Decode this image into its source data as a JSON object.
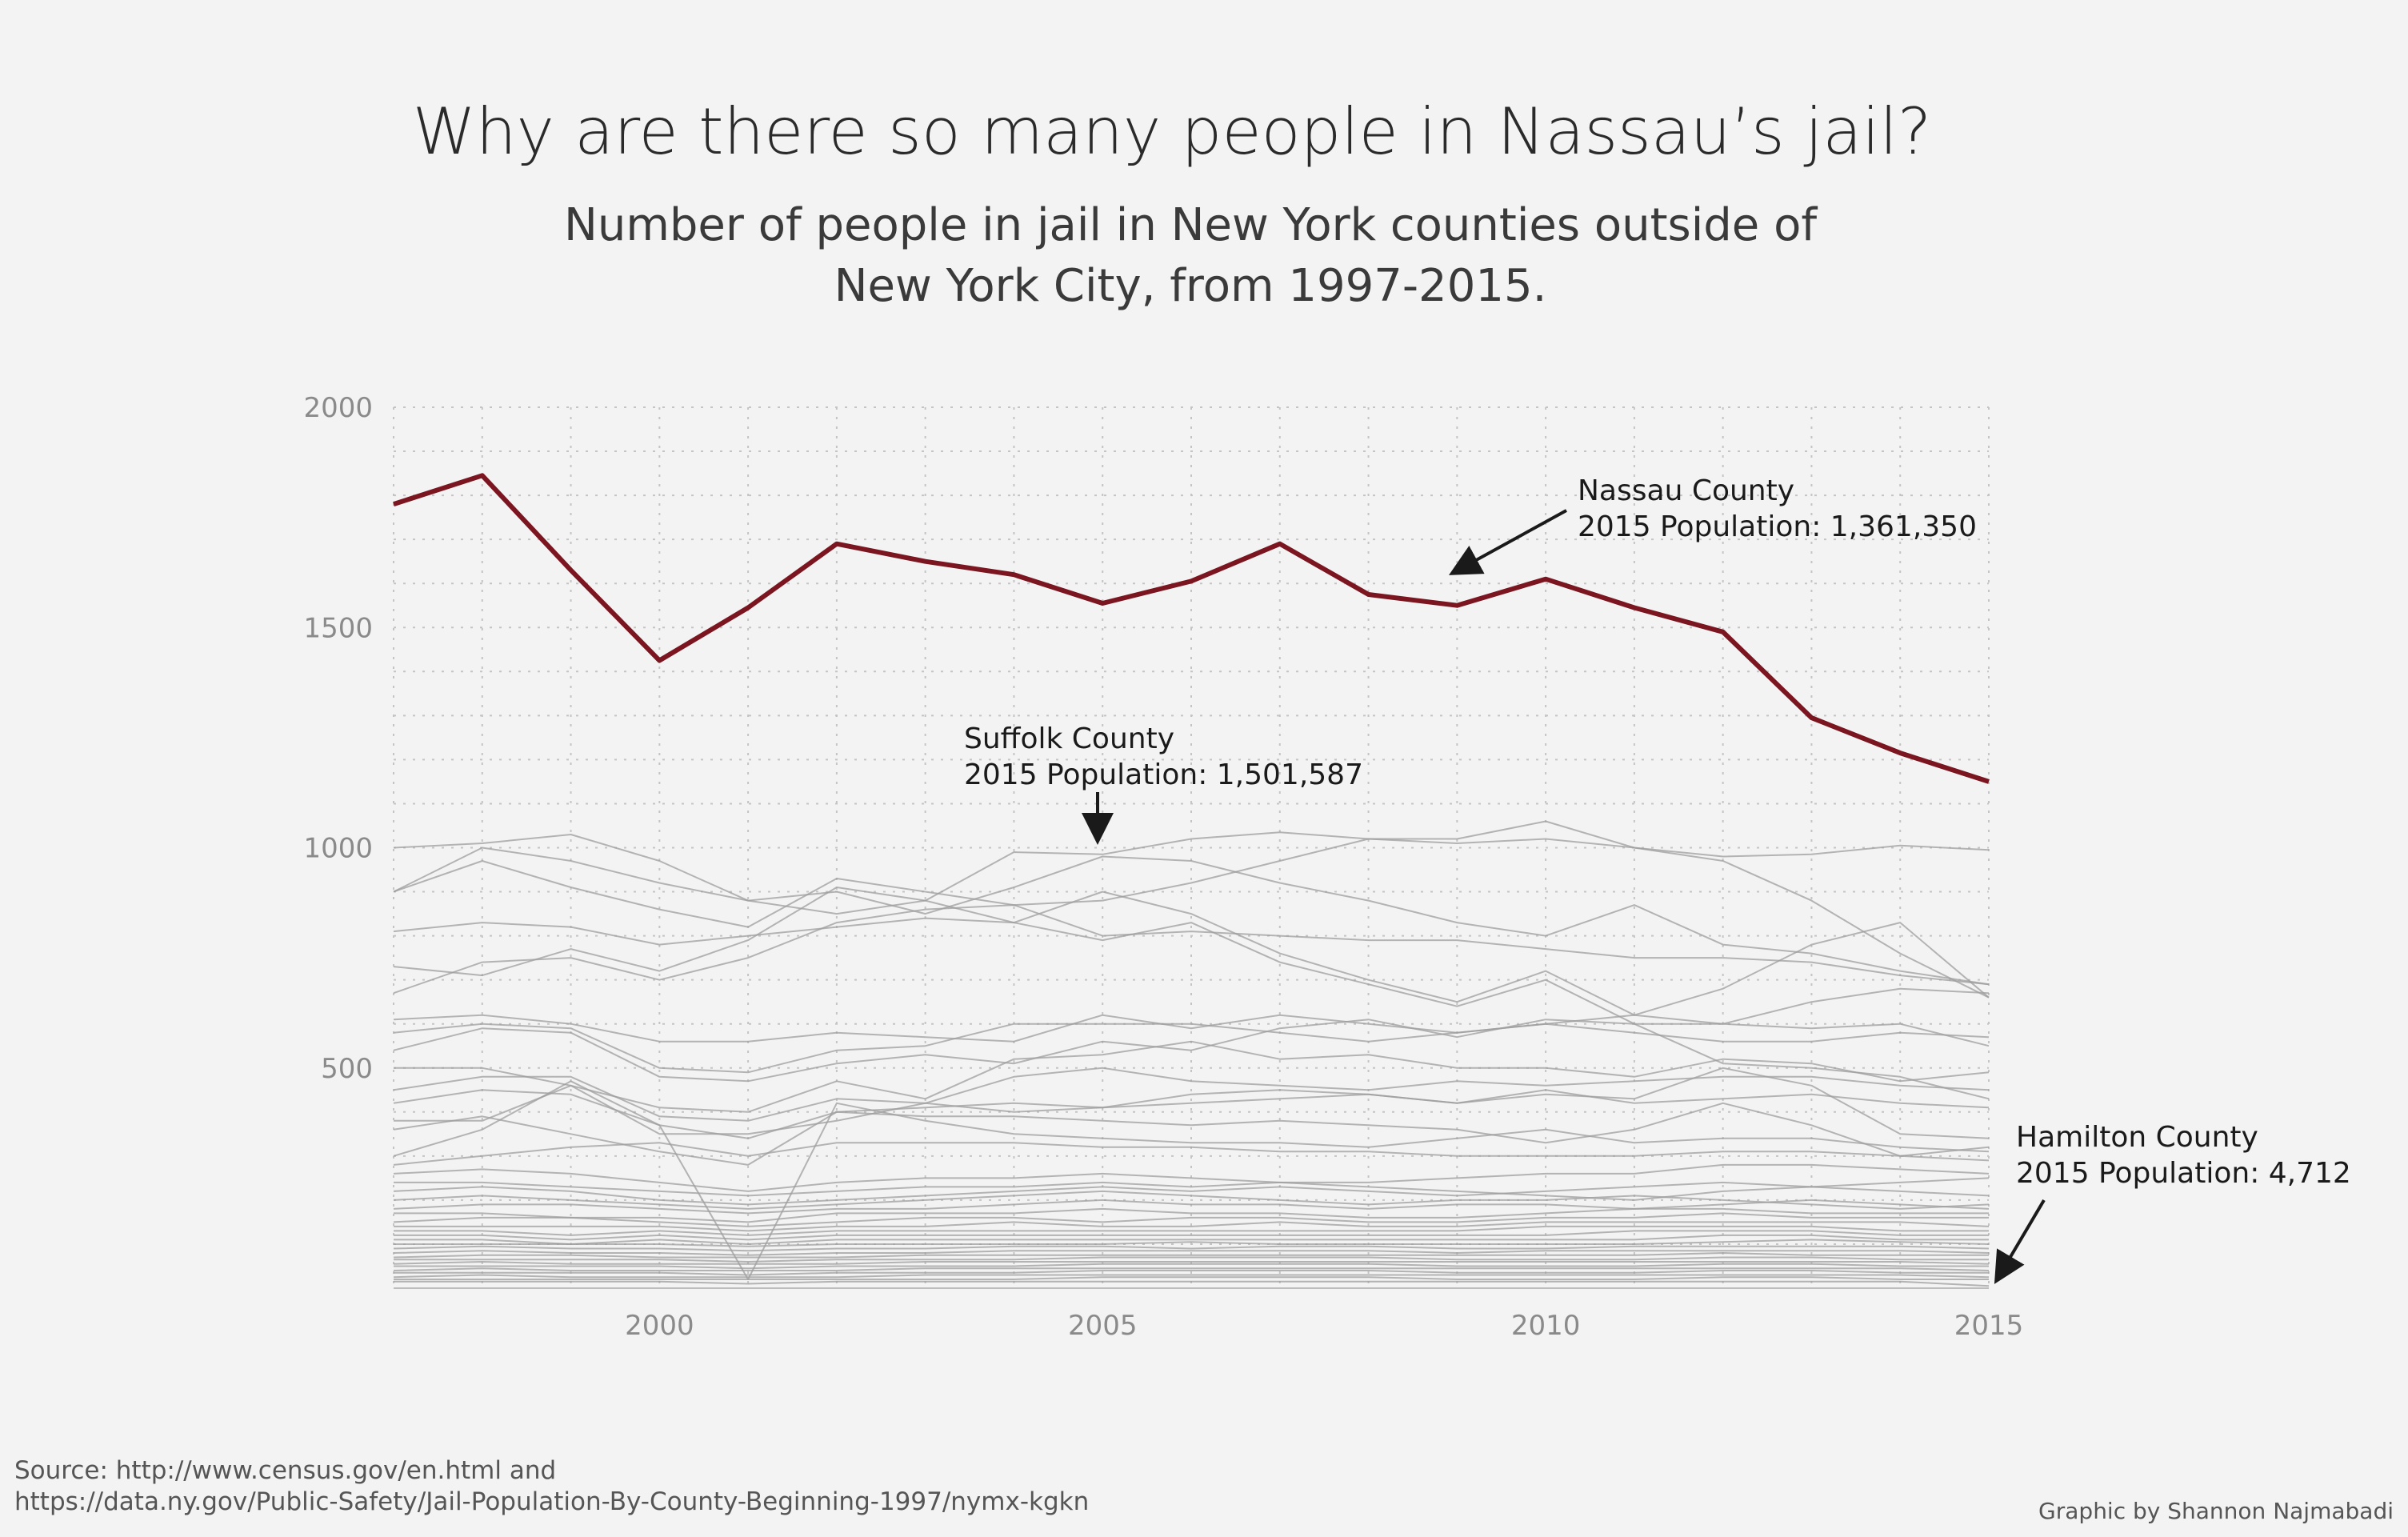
{
  "chart_data": {
    "type": "line",
    "title": "Why are there so many people in Nassau’s jail?",
    "subtitle_lines": [
      "Number of people in jail in New York counties outside of",
      "New York City, from 1997-2015."
    ],
    "x_ticks": [
      "2000",
      "2005",
      "2010",
      "2015"
    ],
    "y_ticks": [
      "2000",
      "1500",
      "1000",
      "500"
    ],
    "xlim": [
      1997,
      2015
    ],
    "ylim": [
      0,
      2000
    ],
    "grid": true,
    "x": [
      1997,
      1998,
      1999,
      2000,
      2001,
      2002,
      2003,
      2004,
      2005,
      2006,
      2007,
      2008,
      2009,
      2010,
      2011,
      2012,
      2013,
      2014,
      2015
    ],
    "highlight_color": "#7b1520",
    "background_color": "#9e9e9e",
    "highlight_series": {
      "values": [
        1780,
        1845,
        1630,
        1425,
        1545,
        1690,
        1650,
        1620,
        1555,
        1605,
        1690,
        1575,
        1550,
        1610,
        1545,
        1490,
        1295,
        1215,
        1150
      ]
    },
    "series": [
      {
        "values": [
          1000,
          1010,
          1030,
          970,
          880,
          850,
          880,
          990,
          985,
          1020,
          1035,
          1020,
          1020,
          1060,
          1000,
          980,
          985,
          1005,
          995
        ]
      },
      {
        "values": [
          900,
          970,
          910,
          860,
          820,
          930,
          900,
          870,
          880,
          920,
          970,
          1020,
          1010,
          1020,
          1000,
          970,
          880,
          760,
          660
        ]
      },
      {
        "values": [
          900,
          1000,
          970,
          920,
          880,
          900,
          850,
          910,
          980,
          970,
          920,
          880,
          830,
          800,
          870,
          780,
          760,
          720,
          690
        ]
      },
      {
        "values": [
          810,
          830,
          820,
          780,
          800,
          820,
          840,
          830,
          900,
          850,
          760,
          700,
          650,
          720,
          620,
          680,
          780,
          830,
          660
        ]
      },
      {
        "values": [
          730,
          710,
          770,
          720,
          790,
          910,
          880,
          830,
          790,
          830,
          740,
          690,
          640,
          700,
          600,
          600,
          650,
          680,
          670
        ]
      },
      {
        "values": [
          670,
          740,
          750,
          700,
          750,
          830,
          860,
          870,
          800,
          810,
          800,
          790,
          790,
          770,
          750,
          750,
          740,
          710,
          690
        ]
      },
      {
        "values": [
          610,
          620,
          600,
          560,
          560,
          580,
          570,
          560,
          620,
          590,
          620,
          600,
          580,
          600,
          620,
          600,
          590,
          600,
          550
        ]
      },
      {
        "values": [
          580,
          600,
          590,
          500,
          490,
          540,
          550,
          600,
          600,
          600,
          580,
          560,
          580,
          600,
          580,
          560,
          560,
          580,
          570
        ]
      },
      {
        "values": [
          540,
          590,
          580,
          480,
          470,
          510,
          530,
          510,
          560,
          540,
          590,
          610,
          570,
          610,
          600,
          510,
          500,
          480,
          430
        ]
      },
      {
        "values": [
          500,
          500,
          460,
          410,
          400,
          470,
          430,
          520,
          530,
          560,
          520,
          530,
          500,
          500,
          480,
          520,
          510,
          470,
          490
        ]
      },
      {
        "values": [
          450,
          480,
          480,
          390,
          380,
          430,
          420,
          480,
          500,
          470,
          460,
          450,
          470,
          460,
          470,
          480,
          480,
          460,
          450
        ]
      },
      {
        "values": [
          420,
          450,
          440,
          370,
          340,
          400,
          410,
          420,
          410,
          440,
          450,
          440,
          420,
          450,
          420,
          430,
          440,
          420,
          410
        ]
      },
      {
        "values": [
          380,
          380,
          460,
          350,
          350,
          380,
          420,
          400,
          410,
          420,
          430,
          440,
          420,
          440,
          430,
          500,
          460,
          350,
          340
        ]
      },
      {
        "values": [
          360,
          390,
          350,
          310,
          280,
          400,
          390,
          390,
          380,
          370,
          380,
          370,
          360,
          330,
          360,
          420,
          370,
          300,
          320
        ]
      },
      {
        "values": [
          300,
          360,
          470,
          370,
          20,
          420,
          380,
          350,
          340,
          330,
          330,
          320,
          340,
          360,
          330,
          340,
          340,
          320,
          310
        ]
      },
      {
        "values": [
          280,
          300,
          320,
          330,
          300,
          330,
          330,
          330,
          320,
          320,
          310,
          310,
          300,
          300,
          300,
          310,
          310,
          300,
          290
        ]
      },
      {
        "values": [
          260,
          270,
          260,
          240,
          220,
          240,
          250,
          250,
          260,
          250,
          240,
          230,
          220,
          210,
          200,
          220,
          230,
          240,
          250
        ]
      },
      {
        "values": [
          240,
          240,
          230,
          220,
          210,
          220,
          230,
          230,
          240,
          230,
          240,
          240,
          250,
          260,
          260,
          280,
          280,
          270,
          260
        ]
      },
      {
        "values": [
          220,
          230,
          220,
          200,
          190,
          200,
          210,
          220,
          230,
          220,
          230,
          220,
          210,
          220,
          230,
          240,
          230,
          220,
          210
        ]
      },
      {
        "values": [
          200,
          210,
          200,
          190,
          180,
          190,
          200,
          210,
          220,
          210,
          200,
          190,
          200,
          200,
          210,
          200,
          190,
          180,
          190
        ]
      },
      {
        "values": [
          180,
          190,
          190,
          180,
          170,
          180,
          180,
          190,
          200,
          190,
          190,
          180,
          190,
          190,
          180,
          190,
          200,
          190,
          180
        ]
      },
      {
        "values": [
          170,
          170,
          160,
          160,
          150,
          170,
          170,
          170,
          180,
          170,
          170,
          160,
          160,
          170,
          180,
          180,
          170,
          170,
          170
        ]
      },
      {
        "values": [
          150,
          160,
          160,
          150,
          140,
          150,
          160,
          160,
          150,
          160,
          160,
          150,
          150,
          160,
          160,
          170,
          160,
          160,
          160
        ]
      },
      {
        "values": [
          140,
          140,
          140,
          140,
          130,
          140,
          140,
          150,
          140,
          140,
          150,
          140,
          140,
          150,
          150,
          150,
          150,
          150,
          140
        ]
      },
      {
        "values": [
          130,
          130,
          120,
          130,
          120,
          130,
          130,
          130,
          130,
          130,
          130,
          130,
          130,
          140,
          140,
          140,
          140,
          130,
          130
        ]
      },
      {
        "values": [
          120,
          120,
          110,
          120,
          110,
          120,
          120,
          120,
          120,
          120,
          120,
          120,
          120,
          120,
          130,
          130,
          130,
          120,
          120
        ]
      },
      {
        "values": [
          110,
          110,
          100,
          110,
          100,
          110,
          110,
          110,
          110,
          110,
          110,
          110,
          110,
          110,
          110,
          120,
          120,
          110,
          110
        ]
      },
      {
        "values": [
          100,
          100,
          100,
          100,
          95,
          100,
          100,
          100,
          100,
          105,
          100,
          100,
          100,
          100,
          100,
          105,
          110,
          105,
          100
        ]
      },
      {
        "values": [
          90,
          95,
          90,
          90,
          85,
          90,
          90,
          95,
          95,
          90,
          95,
          95,
          90,
          90,
          95,
          95,
          95,
          95,
          90
        ]
      },
      {
        "values": [
          80,
          85,
          80,
          80,
          75,
          80,
          80,
          85,
          85,
          85,
          85,
          85,
          80,
          85,
          85,
          85,
          85,
          85,
          80
        ]
      },
      {
        "values": [
          70,
          75,
          75,
          70,
          70,
          70,
          75,
          75,
          75,
          75,
          75,
          75,
          75,
          75,
          75,
          80,
          75,
          75,
          75
        ]
      },
      {
        "values": [
          65,
          65,
          65,
          65,
          60,
          65,
          65,
          65,
          70,
          70,
          70,
          70,
          65,
          65,
          65,
          70,
          70,
          65,
          65
        ]
      },
      {
        "values": [
          55,
          60,
          55,
          55,
          55,
          55,
          60,
          60,
          60,
          60,
          60,
          60,
          60,
          60,
          60,
          60,
          60,
          60,
          55
        ]
      },
      {
        "values": [
          50,
          50,
          50,
          50,
          45,
          50,
          50,
          50,
          55,
          55,
          55,
          55,
          50,
          50,
          50,
          55,
          55,
          50,
          50
        ]
      },
      {
        "values": [
          40,
          45,
          40,
          40,
          40,
          40,
          45,
          45,
          45,
          45,
          45,
          45,
          45,
          45,
          45,
          45,
          45,
          45,
          40
        ]
      },
      {
        "values": [
          35,
          35,
          35,
          35,
          30,
          35,
          35,
          35,
          40,
          40,
          40,
          40,
          35,
          35,
          35,
          40,
          40,
          35,
          35
        ]
      },
      {
        "values": [
          25,
          30,
          25,
          25,
          25,
          25,
          30,
          30,
          30,
          30,
          30,
          30,
          30,
          30,
          30,
          30,
          30,
          30,
          25
        ]
      },
      {
        "values": [
          20,
          20,
          20,
          20,
          20,
          20,
          20,
          20,
          25,
          25,
          25,
          25,
          20,
          20,
          20,
          25,
          25,
          20,
          20
        ]
      },
      {
        "values": [
          15,
          15,
          15,
          15,
          10,
          15,
          15,
          15,
          15,
          15,
          15,
          15,
          15,
          15,
          15,
          15,
          15,
          15,
          5
        ]
      }
    ],
    "annotations": [
      {
        "lines": [
          "Nassau County",
          "2015 Population: 1,361,350"
        ]
      },
      {
        "lines": [
          "Suffolk County",
          "2015 Population: 1,501,587"
        ]
      },
      {
        "lines": [
          "Hamilton County",
          "2015 Population: 4,712"
        ]
      }
    ]
  },
  "footer": {
    "source_line1": "Source: http://www.census.gov/en.html and",
    "source_line2": "https://data.ny.gov/Public-Safety/Jail-Population-By-County-Beginning-1997/nymx-kgkn",
    "credit": "Graphic by Shannon Najmabadi"
  }
}
